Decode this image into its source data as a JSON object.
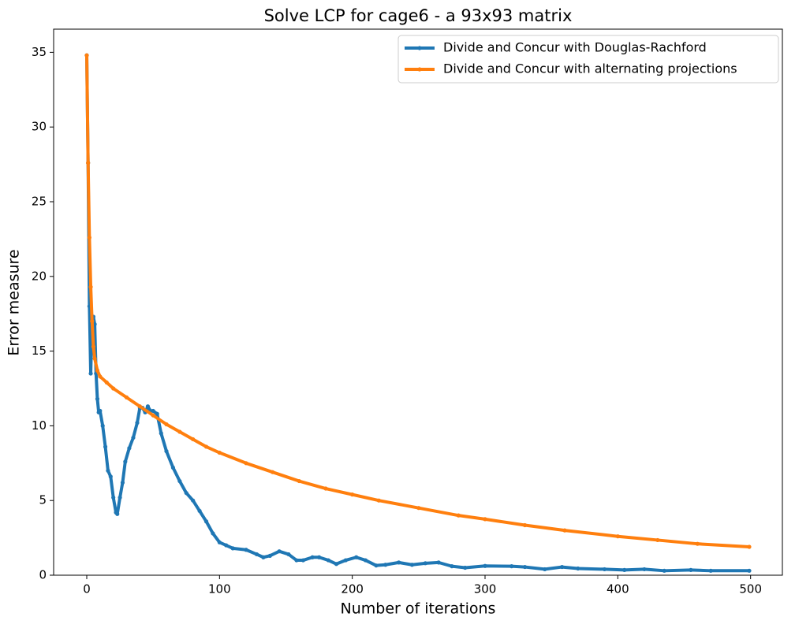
{
  "chart_data": {
    "type": "line",
    "title": "Solve LCP for cage6 - a 93x93 matrix",
    "x_label": "Number of iterations",
    "y_label": "Error measure",
    "xlim": [
      -24.95,
      523.95
    ],
    "ylim": [
      0,
      36.55
    ],
    "xticks": [
      0,
      100,
      200,
      300,
      400,
      500
    ],
    "yticks": [
      0,
      5,
      10,
      15,
      20,
      25,
      30,
      35
    ],
    "legend": "upper right",
    "series": [
      {
        "name": "Divide and Concur with Douglas-Rachford",
        "color": "#1f77b4",
        "x": [
          0,
          1,
          2,
          3,
          4,
          5,
          6,
          7,
          8,
          9,
          10,
          12,
          14,
          16,
          18,
          20,
          22,
          23,
          25,
          27,
          29,
          32,
          35,
          38,
          40,
          42,
          44,
          46,
          48,
          50,
          53,
          56,
          60,
          65,
          70,
          75,
          80,
          85,
          90,
          95,
          100,
          105,
          110,
          120,
          128,
          133,
          138,
          145,
          152,
          158,
          163,
          170,
          175,
          182,
          188,
          195,
          203,
          210,
          218,
          225,
          235,
          245,
          255,
          265,
          275,
          285,
          300,
          320,
          330,
          345,
          358,
          370,
          390,
          405,
          420,
          435,
          455,
          470,
          499
        ],
        "values": [
          34.8,
          27.6,
          18,
          13.5,
          17.3,
          17.3,
          16.8,
          13.5,
          11.8,
          10.9,
          11,
          10,
          8.6,
          7,
          6.6,
          5.2,
          4.2,
          4.1,
          5.2,
          6.2,
          7.6,
          8.5,
          9.2,
          10.2,
          11.2,
          11.2,
          10.9,
          11.3,
          11,
          11,
          10.8,
          9.5,
          8.3,
          7.2,
          6.3,
          5.5,
          5.0,
          4.3,
          3.6,
          2.8,
          2.2,
          2.0,
          1.8,
          1.7,
          1.4,
          1.2,
          1.3,
          1.6,
          1.4,
          1.0,
          1.0,
          1.2,
          1.2,
          1.0,
          0.75,
          1.0,
          1.2,
          1.0,
          0.65,
          0.7,
          0.85,
          0.7,
          0.8,
          0.85,
          0.6,
          0.5,
          0.62,
          0.6,
          0.55,
          0.4,
          0.55,
          0.45,
          0.4,
          0.35,
          0.4,
          0.3,
          0.35,
          0.3,
          0.3
        ]
      },
      {
        "name": "Divide and Concur with alternating projections",
        "color": "#ff7f0e",
        "x": [
          0,
          1,
          2,
          3,
          4,
          5,
          6,
          8,
          10,
          15,
          20,
          30,
          40,
          50,
          60,
          70,
          80,
          90,
          100,
          120,
          140,
          160,
          180,
          200,
          220,
          250,
          280,
          300,
          330,
          360,
          400,
          430,
          460,
          499
        ],
        "values": [
          34.8,
          27.6,
          22.6,
          19.3,
          17,
          15.3,
          14.5,
          13.7,
          13.3,
          12.9,
          12.5,
          11.9,
          11.3,
          10.7,
          10.1,
          9.6,
          9.1,
          8.6,
          8.2,
          7.5,
          6.9,
          6.3,
          5.8,
          5.4,
          5.0,
          4.5,
          4.0,
          3.75,
          3.35,
          3.0,
          2.6,
          2.35,
          2.1,
          1.9
        ]
      }
    ]
  }
}
